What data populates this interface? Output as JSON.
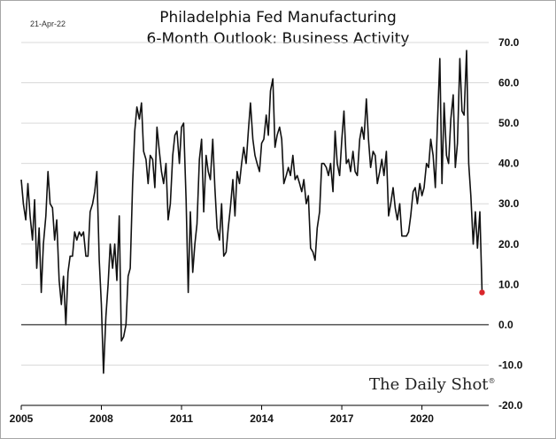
{
  "header": {
    "date": "21-Apr-22",
    "title_line1": "Philadelphia Fed Manufacturing",
    "title_line2": "6-Month Outlook: Business Activity"
  },
  "watermark": {
    "text": "The Daily Shot",
    "mark": "®"
  },
  "colors": {
    "line": "#111111",
    "last_point": "#d9262b",
    "grid": "#d9d9d9",
    "zero_line": "#000000"
  },
  "chart_data": {
    "type": "line",
    "title": "Philadelphia Fed Manufacturing 6-Month Outlook: Business Activity",
    "xlabel": "",
    "ylabel": "",
    "xlim": [
      2005.0,
      2022.5
    ],
    "ylim": [
      -20,
      70
    ],
    "grid": "horizontal",
    "y_ticks": [
      70,
      60,
      50,
      40,
      30,
      20,
      10,
      0,
      -10,
      -20
    ],
    "y_tick_labels": [
      "70.0",
      "60.0",
      "50.0",
      "40.0",
      "30.0",
      "20.0",
      "10.0",
      "0.0",
      "-10.0",
      "-20.0"
    ],
    "x_ticks": [
      2005,
      2008,
      2011,
      2014,
      2017,
      2020
    ],
    "x_tick_labels": [
      "2005",
      "2008",
      "2011",
      "2014",
      "2017",
      "2020"
    ],
    "series": [
      {
        "x": [
          2005.0,
          2005.08,
          2005.17,
          2005.25,
          2005.33,
          2005.42,
          2005.5,
          2005.58,
          2005.67,
          2005.75,
          2005.83,
          2005.92,
          2006.0,
          2006.08,
          2006.17,
          2006.25,
          2006.33,
          2006.42,
          2006.5,
          2006.58,
          2006.67,
          2006.75,
          2006.83,
          2006.92,
          2007.0,
          2007.08,
          2007.17,
          2007.25,
          2007.33,
          2007.42,
          2007.5,
          2007.58,
          2007.67,
          2007.75,
          2007.83,
          2007.92,
          2008.0,
          2008.08,
          2008.17,
          2008.25,
          2008.33,
          2008.42,
          2008.5,
          2008.58,
          2008.67,
          2008.75,
          2008.83,
          2008.92,
          2009.0,
          2009.08,
          2009.17,
          2009.25,
          2009.33,
          2009.42,
          2009.5,
          2009.58,
          2009.67,
          2009.75,
          2009.83,
          2009.92,
          2010.0,
          2010.08,
          2010.17,
          2010.25,
          2010.33,
          2010.42,
          2010.5,
          2010.58,
          2010.67,
          2010.75,
          2010.83,
          2010.92,
          2011.0,
          2011.08,
          2011.17,
          2011.25,
          2011.33,
          2011.42,
          2011.5,
          2011.58,
          2011.67,
          2011.75,
          2011.83,
          2011.92,
          2012.0,
          2012.08,
          2012.17,
          2012.25,
          2012.33,
          2012.42,
          2012.5,
          2012.58,
          2012.67,
          2012.75,
          2012.83,
          2012.92,
          2013.0,
          2013.08,
          2013.17,
          2013.25,
          2013.33,
          2013.42,
          2013.5,
          2013.58,
          2013.67,
          2013.75,
          2013.83,
          2013.92,
          2014.0,
          2014.08,
          2014.17,
          2014.25,
          2014.33,
          2014.42,
          2014.5,
          2014.58,
          2014.67,
          2014.75,
          2014.83,
          2014.92,
          2015.0,
          2015.08,
          2015.17,
          2015.25,
          2015.33,
          2015.42,
          2015.5,
          2015.58,
          2015.67,
          2015.75,
          2015.83,
          2015.92,
          2016.0,
          2016.08,
          2016.17,
          2016.25,
          2016.33,
          2016.42,
          2016.5,
          2016.58,
          2016.67,
          2016.75,
          2016.83,
          2016.92,
          2017.0,
          2017.08,
          2017.17,
          2017.25,
          2017.33,
          2017.42,
          2017.5,
          2017.58,
          2017.67,
          2017.75,
          2017.83,
          2017.92,
          2018.0,
          2018.08,
          2018.17,
          2018.25,
          2018.33,
          2018.42,
          2018.5,
          2018.58,
          2018.67,
          2018.75,
          2018.83,
          2018.92,
          2019.0,
          2019.08,
          2019.17,
          2019.25,
          2019.33,
          2019.42,
          2019.5,
          2019.58,
          2019.67,
          2019.75,
          2019.83,
          2019.92,
          2020.0,
          2020.08,
          2020.17,
          2020.25,
          2020.33,
          2020.42,
          2020.5,
          2020.58,
          2020.67,
          2020.75,
          2020.83,
          2020.92,
          2021.0,
          2021.08,
          2021.17,
          2021.25,
          2021.33,
          2021.42,
          2021.5,
          2021.58,
          2021.67,
          2021.75,
          2021.83,
          2021.92,
          2022.0,
          2022.08,
          2022.17,
          2022.25
        ],
        "values": [
          36,
          30,
          26,
          35,
          27,
          21,
          31,
          14,
          24,
          8,
          20,
          27,
          38,
          30,
          29,
          21,
          26,
          11,
          5,
          12,
          0,
          13,
          17,
          17,
          23,
          21,
          23,
          22,
          23,
          17,
          17,
          28,
          30,
          33,
          38,
          16,
          5,
          -12,
          2,
          10,
          20,
          14,
          20,
          11,
          27,
          -4,
          -3,
          0,
          12,
          14,
          35,
          48,
          54,
          51,
          55,
          43,
          41,
          35,
          42,
          41,
          34,
          49,
          43,
          38,
          35,
          40,
          26,
          30,
          42,
          47,
          48,
          40,
          49,
          50,
          31,
          8,
          28,
          13,
          20,
          25,
          41,
          46,
          28,
          42,
          38,
          36,
          46,
          34,
          24,
          21,
          30,
          17,
          18,
          24,
          29,
          36,
          27,
          38,
          35,
          40,
          44,
          40,
          48,
          55,
          46,
          42,
          40,
          38,
          45,
          46,
          52,
          47,
          58,
          61,
          44,
          47,
          49,
          46,
          35,
          37,
          39,
          37,
          42,
          36,
          37,
          35,
          33,
          36,
          30,
          32,
          19,
          18,
          16,
          24,
          28,
          40,
          40,
          39,
          37,
          40,
          33,
          48,
          40,
          37,
          46,
          53,
          40,
          41,
          38,
          43,
          38,
          37,
          46,
          49,
          46,
          56,
          46,
          39,
          43,
          42,
          35,
          38,
          41,
          37,
          43,
          27,
          30,
          34,
          29,
          26,
          30,
          22,
          22,
          22,
          23,
          27,
          33,
          34,
          30,
          35,
          32,
          34,
          40,
          39,
          46,
          42,
          34,
          50,
          66,
          35,
          55,
          42,
          40,
          51,
          57,
          39,
          45,
          66,
          53,
          52,
          68,
          40,
          32,
          20,
          28,
          19,
          28,
          8
        ]
      }
    ],
    "last_point": {
      "x": 2022.25,
      "y": 8
    }
  }
}
